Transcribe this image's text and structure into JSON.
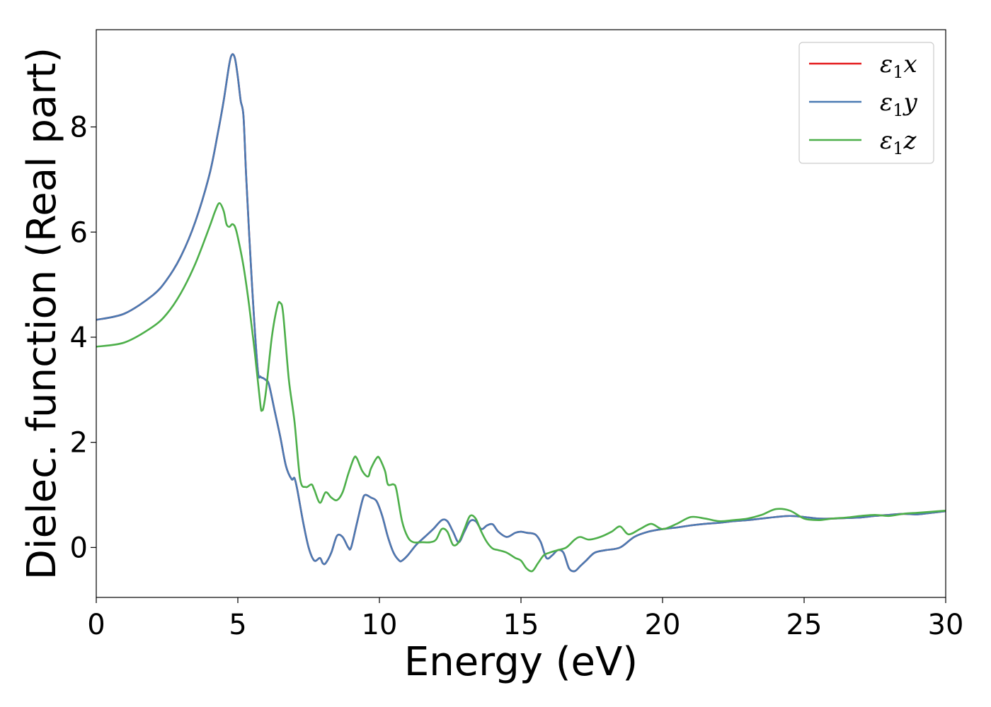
{
  "chart_data": {
    "type": "line",
    "title": "",
    "xlabel": "Energy (eV)",
    "ylabel": "Dielec. function (Real part)",
    "xlim": [
      0,
      30
    ],
    "ylim": [
      -0.95,
      9.85
    ],
    "xticks": [
      0,
      5,
      10,
      15,
      20,
      25,
      30
    ],
    "yticks": [
      0,
      2,
      4,
      6,
      8
    ],
    "grid": false,
    "legend_position": "top-right",
    "series": [
      {
        "name": "ε₁x",
        "legend_base": "ε",
        "legend_sub": "1",
        "legend_suffix": "x",
        "color": "#e41a1c",
        "x": [
          0,
          1,
          2,
          2.5,
          3,
          3.5,
          4,
          4.3,
          4.5,
          4.7,
          4.8,
          4.9,
          5.0,
          5.1,
          5.2,
          5.3,
          5.5,
          5.7,
          5.8,
          5.9,
          6.0,
          6.1,
          6.3,
          6.5,
          6.7,
          6.9,
          7.0,
          7.1,
          7.3,
          7.5,
          7.7,
          7.9,
          8.0,
          8.1,
          8.3,
          8.5,
          8.7,
          8.9,
          9.0,
          9.2,
          9.4,
          9.5,
          9.7,
          9.9,
          10.1,
          10.3,
          10.5,
          10.7,
          10.8,
          11.0,
          11.3,
          11.6,
          11.9,
          12.2,
          12.4,
          12.6,
          12.8,
          13.0,
          13.2,
          13.4,
          13.6,
          13.8,
          14.0,
          14.2,
          14.5,
          14.8,
          15.0,
          15.2,
          15.5,
          15.7,
          15.9,
          16.1,
          16.3,
          16.5,
          16.7,
          16.9,
          17.1,
          17.3,
          17.6,
          18.0,
          18.5,
          19.0,
          19.5,
          20.0,
          20.5,
          21.0,
          21.5,
          22.0,
          22.5,
          23.0,
          23.5,
          24.0,
          24.5,
          25.0,
          25.5,
          26.0,
          26.5,
          27.0,
          27.5,
          28.0,
          28.5,
          29.0,
          29.5,
          30.0
        ],
        "y": [
          4.33,
          4.45,
          4.8,
          5.1,
          5.55,
          6.2,
          7.1,
          7.9,
          8.5,
          9.2,
          9.38,
          9.3,
          8.95,
          8.5,
          8.2,
          7.0,
          5.0,
          3.4,
          3.25,
          3.22,
          3.18,
          3.1,
          2.6,
          2.1,
          1.55,
          1.3,
          1.32,
          1.1,
          0.5,
          0.0,
          -0.25,
          -0.2,
          -0.3,
          -0.3,
          -0.1,
          0.22,
          0.2,
          0.0,
          0.0,
          0.45,
          0.9,
          1.0,
          0.95,
          0.88,
          0.6,
          0.2,
          -0.1,
          -0.25,
          -0.25,
          -0.15,
          0.05,
          0.2,
          0.35,
          0.52,
          0.5,
          0.3,
          0.1,
          0.3,
          0.5,
          0.5,
          0.35,
          0.42,
          0.44,
          0.3,
          0.2,
          0.28,
          0.3,
          0.28,
          0.25,
          0.1,
          -0.2,
          -0.15,
          -0.05,
          -0.1,
          -0.4,
          -0.45,
          -0.35,
          -0.25,
          -0.1,
          -0.05,
          0.0,
          0.2,
          0.3,
          0.35,
          0.38,
          0.42,
          0.45,
          0.47,
          0.5,
          0.52,
          0.55,
          0.58,
          0.6,
          0.58,
          0.55,
          0.55,
          0.56,
          0.57,
          0.6,
          0.62,
          0.64,
          0.63,
          0.66,
          0.69
        ]
      },
      {
        "name": "ε₁y",
        "legend_base": "ε",
        "legend_sub": "1",
        "legend_suffix": "y",
        "color": "#4a7ab3",
        "x": [
          0,
          1,
          2,
          2.5,
          3,
          3.5,
          4,
          4.3,
          4.5,
          4.7,
          4.8,
          4.9,
          5.0,
          5.1,
          5.2,
          5.3,
          5.5,
          5.7,
          5.8,
          5.9,
          6.0,
          6.1,
          6.3,
          6.5,
          6.7,
          6.9,
          7.0,
          7.1,
          7.3,
          7.5,
          7.7,
          7.9,
          8.0,
          8.1,
          8.3,
          8.5,
          8.7,
          8.9,
          9.0,
          9.2,
          9.4,
          9.5,
          9.7,
          9.9,
          10.1,
          10.3,
          10.5,
          10.7,
          10.8,
          11.0,
          11.3,
          11.6,
          11.9,
          12.2,
          12.4,
          12.6,
          12.8,
          13.0,
          13.2,
          13.4,
          13.6,
          13.8,
          14.0,
          14.2,
          14.5,
          14.8,
          15.0,
          15.2,
          15.5,
          15.7,
          15.9,
          16.1,
          16.3,
          16.5,
          16.7,
          16.9,
          17.1,
          17.3,
          17.6,
          18.0,
          18.5,
          19.0,
          19.5,
          20.0,
          20.5,
          21.0,
          21.5,
          22.0,
          22.5,
          23.0,
          23.5,
          24.0,
          24.5,
          25.0,
          25.5,
          26.0,
          26.5,
          27.0,
          27.5,
          28.0,
          28.5,
          29.0,
          29.5,
          30.0
        ],
        "y": [
          4.33,
          4.45,
          4.8,
          5.1,
          5.55,
          6.2,
          7.1,
          7.9,
          8.5,
          9.2,
          9.38,
          9.3,
          8.95,
          8.5,
          8.2,
          7.0,
          5.0,
          3.4,
          3.25,
          3.22,
          3.18,
          3.1,
          2.6,
          2.1,
          1.55,
          1.3,
          1.32,
          1.1,
          0.5,
          0.0,
          -0.25,
          -0.2,
          -0.3,
          -0.3,
          -0.1,
          0.22,
          0.2,
          0.0,
          0.0,
          0.45,
          0.9,
          1.0,
          0.95,
          0.88,
          0.6,
          0.2,
          -0.1,
          -0.25,
          -0.25,
          -0.15,
          0.05,
          0.2,
          0.35,
          0.52,
          0.5,
          0.3,
          0.1,
          0.3,
          0.5,
          0.5,
          0.35,
          0.42,
          0.44,
          0.3,
          0.2,
          0.28,
          0.3,
          0.28,
          0.25,
          0.1,
          -0.2,
          -0.15,
          -0.05,
          -0.1,
          -0.4,
          -0.45,
          -0.35,
          -0.25,
          -0.1,
          -0.05,
          0.0,
          0.2,
          0.3,
          0.35,
          0.38,
          0.42,
          0.45,
          0.47,
          0.5,
          0.52,
          0.55,
          0.58,
          0.6,
          0.58,
          0.55,
          0.55,
          0.56,
          0.57,
          0.6,
          0.62,
          0.64,
          0.63,
          0.66,
          0.69
        ]
      },
      {
        "name": "ε₁z",
        "legend_base": "ε",
        "legend_sub": "1",
        "legend_suffix": "z",
        "color": "#4daf4a",
        "x": [
          0,
          1,
          2,
          2.5,
          3,
          3.5,
          4,
          4.2,
          4.35,
          4.5,
          4.6,
          4.7,
          4.8,
          4.9,
          5.0,
          5.2,
          5.4,
          5.6,
          5.8,
          5.85,
          5.9,
          6.0,
          6.2,
          6.4,
          6.5,
          6.6,
          6.8,
          7.0,
          7.2,
          7.4,
          7.6,
          7.7,
          7.9,
          8.1,
          8.3,
          8.5,
          8.7,
          8.9,
          9.1,
          9.2,
          9.4,
          9.6,
          9.7,
          9.9,
          10.0,
          10.2,
          10.3,
          10.5,
          10.6,
          10.8,
          11.0,
          11.2,
          11.5,
          11.8,
          12.0,
          12.2,
          12.4,
          12.6,
          12.8,
          13.0,
          13.2,
          13.4,
          13.6,
          13.8,
          14.0,
          14.2,
          14.5,
          14.8,
          15.0,
          15.2,
          15.4,
          15.6,
          15.8,
          16.0,
          16.3,
          16.6,
          16.9,
          17.1,
          17.4,
          17.8,
          18.2,
          18.5,
          18.8,
          19.2,
          19.6,
          20.0,
          20.5,
          21.0,
          21.5,
          22.0,
          22.5,
          23.0,
          23.5,
          24.0,
          24.5,
          25.0,
          25.5,
          26.0,
          26.5,
          27.0,
          27.5,
          28.0,
          28.5,
          29.0,
          29.5,
          30.0
        ],
        "y": [
          3.82,
          3.9,
          4.2,
          4.45,
          4.85,
          5.4,
          6.1,
          6.4,
          6.55,
          6.4,
          6.15,
          6.1,
          6.15,
          6.1,
          5.9,
          5.35,
          4.6,
          3.7,
          2.7,
          2.62,
          2.65,
          3.0,
          4.0,
          4.6,
          4.65,
          4.45,
          3.2,
          2.4,
          1.3,
          1.15,
          1.2,
          1.1,
          0.85,
          1.05,
          0.95,
          0.9,
          1.05,
          1.4,
          1.7,
          1.7,
          1.45,
          1.35,
          1.5,
          1.7,
          1.7,
          1.45,
          1.2,
          1.2,
          1.1,
          0.5,
          0.2,
          0.1,
          0.1,
          0.1,
          0.15,
          0.35,
          0.3,
          0.05,
          0.1,
          0.35,
          0.6,
          0.55,
          0.3,
          0.1,
          -0.02,
          -0.05,
          -0.1,
          -0.2,
          -0.25,
          -0.4,
          -0.45,
          -0.3,
          -0.15,
          -0.1,
          -0.05,
          0.0,
          0.15,
          0.2,
          0.15,
          0.2,
          0.3,
          0.4,
          0.25,
          0.35,
          0.45,
          0.35,
          0.45,
          0.58,
          0.55,
          0.5,
          0.52,
          0.55,
          0.62,
          0.73,
          0.7,
          0.55,
          0.52,
          0.55,
          0.57,
          0.6,
          0.62,
          0.6,
          0.64,
          0.66,
          0.68,
          0.7
        ]
      }
    ]
  }
}
